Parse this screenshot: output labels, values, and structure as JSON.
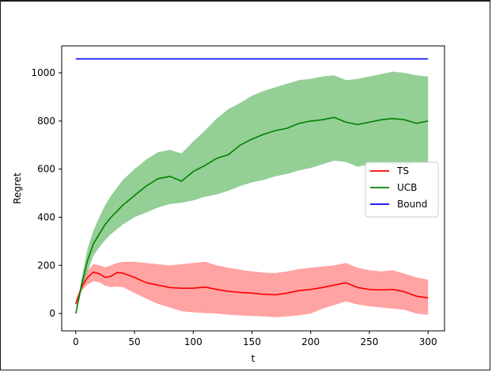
{
  "chart_data": {
    "type": "line",
    "xlabel": "t",
    "ylabel": "Regret",
    "xlim": [
      -12,
      314
    ],
    "ylim": [
      -72,
      1112
    ],
    "xticks": [
      0,
      50,
      100,
      150,
      200,
      250,
      300
    ],
    "yticks": [
      0,
      200,
      400,
      600,
      800,
      1000
    ],
    "grid": false,
    "legend_position": "center-right",
    "series": [
      {
        "name": "TS",
        "color": "#ff0000",
        "band_color": "#ff6666",
        "x": [
          0,
          5,
          10,
          15,
          20,
          25,
          30,
          35,
          40,
          50,
          60,
          70,
          80,
          90,
          100,
          110,
          120,
          130,
          140,
          150,
          160,
          170,
          180,
          190,
          200,
          210,
          220,
          230,
          240,
          250,
          260,
          270,
          280,
          290,
          300
        ],
        "mean": [
          40,
          110,
          150,
          172,
          165,
          150,
          155,
          170,
          168,
          150,
          128,
          118,
          108,
          105,
          105,
          110,
          100,
          92,
          88,
          85,
          80,
          78,
          85,
          95,
          100,
          108,
          118,
          128,
          108,
          100,
          98,
          100,
          90,
          72,
          65
        ],
        "lower": [
          30,
          95,
          120,
          135,
          130,
          115,
          110,
          112,
          110,
          85,
          62,
          40,
          25,
          10,
          5,
          2,
          0,
          -5,
          -8,
          -10,
          -12,
          -15,
          -12,
          -8,
          0,
          20,
          35,
          50,
          38,
          30,
          25,
          20,
          15,
          0,
          -5
        ],
        "upper": [
          50,
          125,
          180,
          205,
          200,
          192,
          200,
          210,
          215,
          215,
          210,
          205,
          200,
          205,
          210,
          215,
          200,
          190,
          182,
          175,
          170,
          168,
          175,
          185,
          190,
          195,
          200,
          210,
          190,
          180,
          175,
          180,
          165,
          150,
          140
        ]
      },
      {
        "name": "UCB",
        "color": "#008000",
        "band_color": "#4caf50",
        "x": [
          0,
          5,
          10,
          15,
          20,
          25,
          30,
          40,
          50,
          60,
          70,
          80,
          90,
          100,
          110,
          120,
          130,
          140,
          150,
          160,
          170,
          180,
          190,
          200,
          210,
          220,
          230,
          240,
          250,
          260,
          270,
          280,
          290,
          300
        ],
        "mean": [
          0,
          120,
          220,
          290,
          330,
          370,
          400,
          450,
          490,
          530,
          560,
          570,
          550,
          590,
          615,
          645,
          660,
          700,
          725,
          745,
          760,
          770,
          790,
          800,
          805,
          815,
          795,
          785,
          795,
          805,
          810,
          805,
          790,
          800
        ],
        "lower": [
          -5,
          100,
          175,
          240,
          275,
          305,
          330,
          370,
          400,
          420,
          440,
          455,
          460,
          470,
          485,
          495,
          510,
          530,
          545,
          555,
          570,
          580,
          595,
          605,
          620,
          635,
          630,
          610,
          620,
          625,
          620,
          615,
          625,
          630
        ],
        "upper": [
          5,
          145,
          270,
          345,
          400,
          450,
          490,
          555,
          600,
          640,
          670,
          680,
          665,
          715,
          760,
          810,
          850,
          875,
          905,
          925,
          940,
          955,
          970,
          975,
          985,
          990,
          970,
          975,
          985,
          995,
          1005,
          1000,
          990,
          985
        ]
      },
      {
        "name": "Bound",
        "color": "#0000ff",
        "x": [
          0,
          300
        ],
        "mean": [
          1058,
          1058
        ]
      }
    ]
  }
}
